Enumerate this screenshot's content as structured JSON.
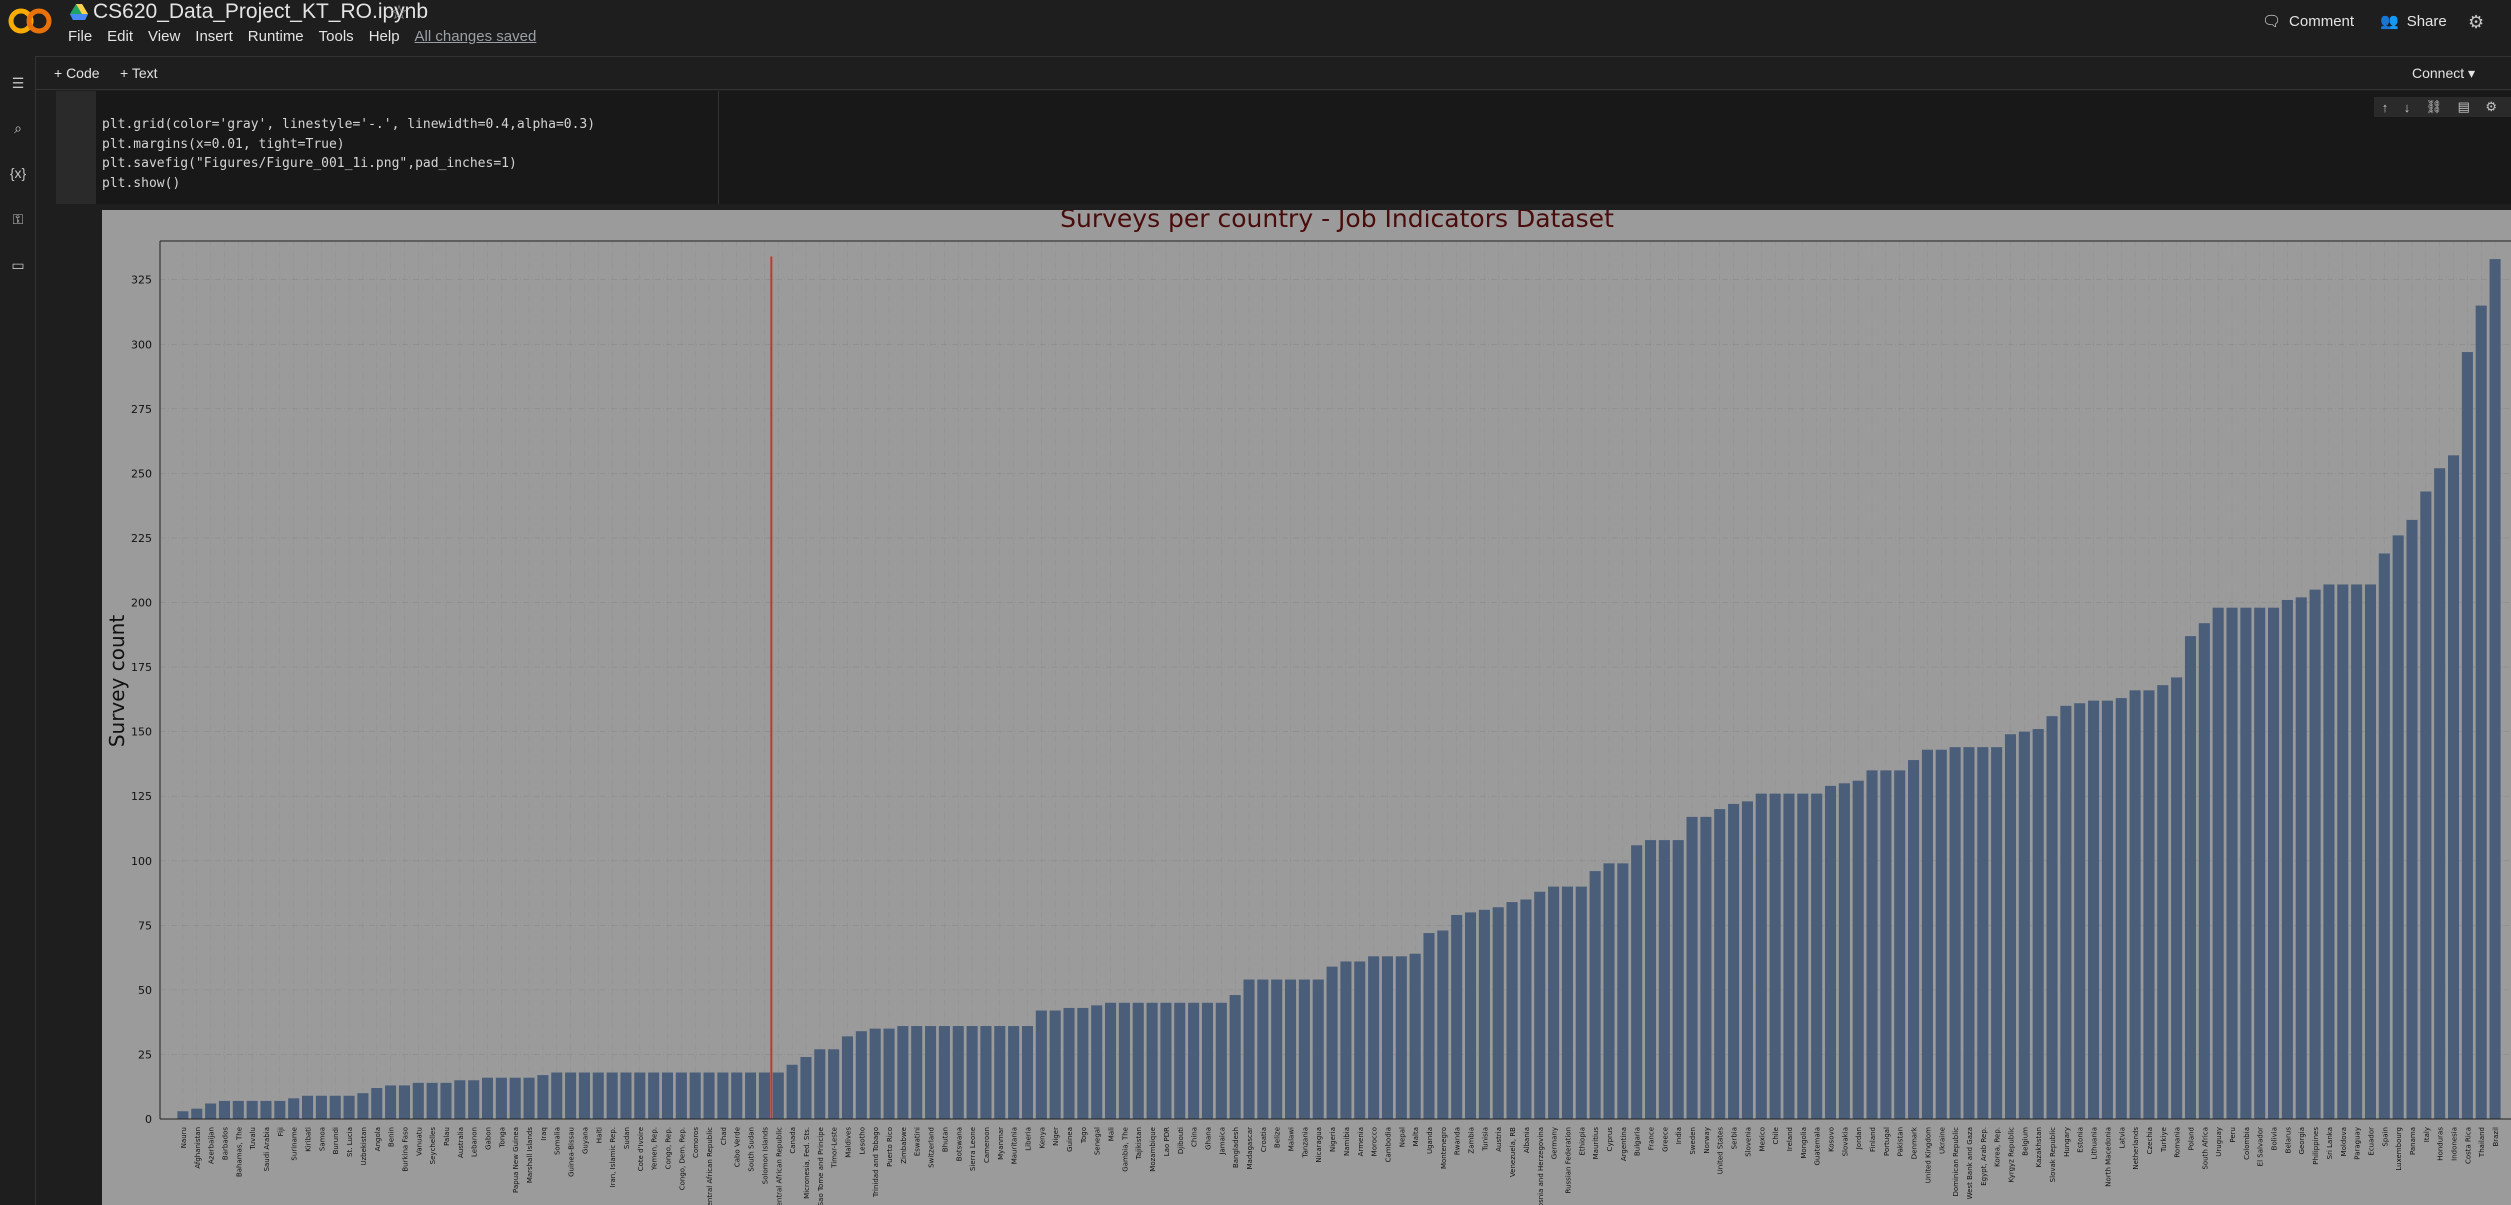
{
  "app": {
    "notebook_title": "CS620_Data_Project_KT_RO.ipynb",
    "star_icon": "star-icon",
    "menu": [
      "File",
      "Edit",
      "View",
      "Insert",
      "Runtime",
      "Tools",
      "Help"
    ],
    "save_status": "All changes saved",
    "comment_label": "Comment",
    "share_label": "Share"
  },
  "toolbar": {
    "code_label": "+ Code",
    "text_label": "+ Text",
    "connect_label": "Connect"
  },
  "sidebar": {
    "icons": [
      "toc-icon",
      "search-icon",
      "variables-icon",
      "key-icon",
      "folder-icon"
    ]
  },
  "cell": {
    "lines": [
      "plt.grid(color='gray', linestyle='-.', linewidth=0.4,alpha=0.3)",
      "plt.margins(x=0.01, tight=True)",
      "plt.savefig(\"Figures/Figure_001_1i.png\",pad_inches=1)",
      "plt.show()"
    ]
  },
  "chart_data": {
    "type": "bar",
    "title": "Surveys per country - Job Indicators Dataset",
    "xlabel": "",
    "ylabel": "Survey count",
    "ylim": [
      0,
      340
    ],
    "yticks": [
      0,
      25,
      50,
      75,
      100,
      125,
      150,
      175,
      200,
      225,
      250,
      275,
      300,
      325
    ],
    "grid": true,
    "bar_color": "#4a5e7a",
    "vline_color": "#c0392b",
    "vline_after_category": "Solomon Islands",
    "categories": [
      "Nauru",
      "Afghanistan",
      "Azerbaijan",
      "Barbados",
      "Bahamas, The",
      "Tuvalu",
      "Saudi Arabia",
      "Fiji",
      "Suriname",
      "Kiribati",
      "Samoa",
      "Burundi",
      "St. Lucia",
      "Uzbekistan",
      "Angola",
      "Benin",
      "Burkina Faso",
      "Vanuatu",
      "Seychelles",
      "Palau",
      "Australia",
      "Lebanon",
      "Gabon",
      "Tonga",
      "Papua New Guinea",
      "Marshall Islands",
      "Iraq",
      "Somalia",
      "Guinea-Bissau",
      "Guyana",
      "Haiti",
      "Iran, Islamic Rep.",
      "Sudan",
      "Cote d'Ivoire",
      "Yemen, Rep.",
      "Congo, Rep.",
      "Congo, Dem. Rep.",
      "Comoros",
      "Central African Republic",
      "Chad",
      "Cabo Verde",
      "South Sudan",
      "Solomon Islands",
      "Central African Republic",
      "Canada",
      "Micronesia, Fed. Sts.",
      "Sao Tome and Principe",
      "Timor-Leste",
      "Maldives",
      "Lesotho",
      "Trinidad and Tobago",
      "Puerto Rico",
      "Zimbabwe",
      "Eswatini",
      "Switzerland",
      "Bhutan",
      "Botswana",
      "Sierra Leone",
      "Cameroon",
      "Myanmar",
      "Mauritania",
      "Liberia",
      "Kenya",
      "Niger",
      "Guinea",
      "Togo",
      "Senegal",
      "Mali",
      "Gambia, The",
      "Tajikistan",
      "Mozambique",
      "Lao PDR",
      "Djibouti",
      "China",
      "Ghana",
      "Jamaica",
      "Bangladesh",
      "Madagascar",
      "Croatia",
      "Belize",
      "Malawi",
      "Tanzania",
      "Nicaragua",
      "Nigeria",
      "Namibia",
      "Armenia",
      "Morocco",
      "Cambodia",
      "Nepal",
      "Malta",
      "Uganda",
      "Montenegro",
      "Rwanda",
      "Zambia",
      "Tunisia",
      "Austria",
      "Venezuela, RB",
      "Albania",
      "Bosnia and Herzegovina",
      "Germany",
      "Russian Federation",
      "Ethiopia",
      "Mauritius",
      "Cyprus",
      "Argentina",
      "Bulgaria",
      "France",
      "Greece",
      "India",
      "Sweden",
      "Norway",
      "United States",
      "Serbia",
      "Slovenia",
      "Mexico",
      "Chile",
      "Ireland",
      "Mongolia",
      "Guatemala",
      "Kosovo",
      "Slovakia",
      "Jordan",
      "Finland",
      "Portugal",
      "Pakistan",
      "Denmark",
      "United Kingdom",
      "Ukraine",
      "Dominican Republic",
      "West Bank and Gaza",
      "Egypt, Arab Rep.",
      "Korea, Rep.",
      "Kyrgyz Republic",
      "Belgium",
      "Kazakhstan",
      "Slovak Republic",
      "Hungary",
      "Estonia",
      "Lithuania",
      "North Macedonia",
      "Latvia",
      "Netherlands",
      "Czechia",
      "Turkiye",
      "Romania",
      "Poland",
      "South Africa",
      "Uruguay",
      "Peru",
      "Colombia",
      "El Salvador",
      "Bolivia",
      "Belarus",
      "Georgia",
      "Philippines",
      "Sri Lanka",
      "Moldova",
      "Paraguay",
      "Ecuador",
      "Spain",
      "Luxembourg",
      "Panama",
      "Italy",
      "Honduras",
      "Indonesia",
      "Costa Rica",
      "Thailand",
      "Brazil"
    ],
    "values": [
      3,
      4,
      6,
      7,
      7,
      7,
      7,
      7,
      8,
      9,
      9,
      9,
      9,
      10,
      12,
      13,
      13,
      14,
      14,
      14,
      15,
      15,
      16,
      16,
      16,
      16,
      17,
      18,
      18,
      18,
      18,
      18,
      18,
      18,
      18,
      18,
      18,
      18,
      18,
      18,
      18,
      18,
      18,
      18,
      21,
      24,
      27,
      27,
      32,
      34,
      35,
      35,
      36,
      36,
      36,
      36,
      36,
      36,
      36,
      36,
      36,
      36,
      42,
      42,
      43,
      43,
      44,
      45,
      45,
      45,
      45,
      45,
      45,
      45,
      45,
      45,
      48,
      54,
      54,
      54,
      54,
      54,
      54,
      59,
      61,
      61,
      63,
      63,
      63,
      64,
      72,
      73,
      79,
      80,
      81,
      82,
      84,
      85,
      88,
      90,
      90,
      90,
      96,
      99,
      99,
      106,
      108,
      108,
      108,
      117,
      117,
      120,
      122,
      123,
      126,
      126,
      126,
      126,
      126,
      129,
      130,
      131,
      135,
      135,
      135,
      139,
      143,
      143,
      144,
      144,
      144,
      144,
      149,
      150,
      151,
      156,
      160,
      161,
      162,
      162,
      163,
      166,
      166,
      168,
      171,
      187,
      192,
      198,
      198,
      198,
      198,
      198,
      201,
      202,
      205,
      207,
      207,
      207,
      207,
      219,
      226,
      232,
      243,
      252,
      257,
      297,
      315,
      333
    ]
  }
}
